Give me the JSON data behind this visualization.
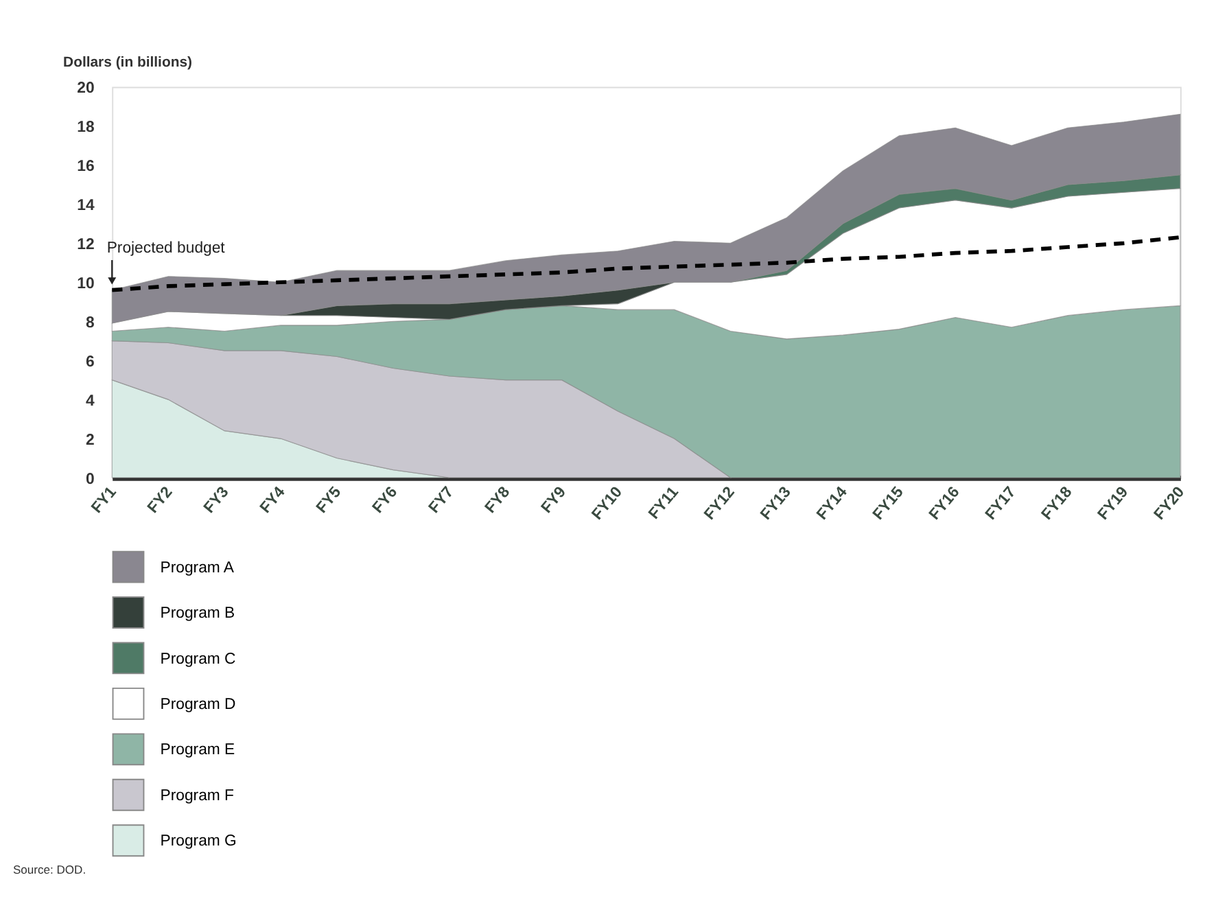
{
  "chart_data": {
    "type": "area",
    "stacked": true,
    "ylabel": "Dollars (in billions)",
    "categories": [
      "FY1",
      "FY2",
      "FY3",
      "FY4",
      "FY5",
      "FY6",
      "FY7",
      "FY8",
      "FY9",
      "FY10",
      "FY11",
      "FY12",
      "FY13",
      "FY14",
      "FY15",
      "FY16",
      "FY17",
      "FY18",
      "FY19",
      "FY20"
    ],
    "series": [
      {
        "name": "Program G",
        "color": "#d9ece6",
        "values": [
          5,
          4,
          2.4,
          2,
          1,
          0.4,
          0,
          null,
          null,
          null,
          null,
          null,
          null,
          null,
          null,
          null,
          null,
          null,
          null,
          null
        ]
      },
      {
        "name": "Program F",
        "color": "#c9c7cf",
        "values": [
          2,
          2.9,
          4.1,
          4.5,
          5.2,
          5.2,
          5.2,
          5,
          5,
          3.4,
          2,
          0,
          null,
          null,
          null,
          null,
          null,
          null,
          null,
          null
        ]
      },
      {
        "name": "Program E",
        "color": "#8fb5a6",
        "values": [
          0.5,
          0.8,
          1,
          1.3,
          1.6,
          2.4,
          2.9,
          3.6,
          3.8,
          5.2,
          6.6,
          7.5,
          7.1,
          7.3,
          7.6,
          8.2,
          7.7,
          8.3,
          8.6,
          8.8
        ]
      },
      {
        "name": "Program D",
        "color": "#ffffff",
        "values": [
          0.4,
          0.8,
          0.9,
          0.5,
          0.5,
          0.2,
          0,
          0,
          0,
          0.3,
          1.4,
          2.5,
          3.3,
          5.2,
          6.2,
          6,
          6.1,
          6.1,
          6,
          6
        ]
      },
      {
        "name": "Program C",
        "color": "#4f7a66",
        "values": [
          null,
          null,
          null,
          null,
          null,
          null,
          null,
          null,
          null,
          null,
          null,
          0,
          0.2,
          0.5,
          0.7,
          0.6,
          0.4,
          0.6,
          0.6,
          0.7
        ]
      },
      {
        "name": "Program B",
        "color": "#34403a",
        "values": [
          null,
          null,
          null,
          0,
          0.5,
          0.7,
          0.8,
          0.5,
          0.5,
          0.7,
          0,
          null,
          null,
          null,
          null,
          null,
          null,
          null,
          null,
          null
        ]
      },
      {
        "name": "Program A",
        "color": "#8a8790",
        "values": [
          1.7,
          1.8,
          1.8,
          1.7,
          1.8,
          1.7,
          1.7,
          2,
          2.1,
          2,
          2.1,
          2,
          2.7,
          2.7,
          3,
          3.1,
          2.8,
          2.9,
          3,
          3.1
        ]
      },
      {
        "type": "line",
        "color": "#000000",
        "line_style": "dashed",
        "values": [
          9.6,
          9.8,
          9.9,
          10,
          10.1,
          10.2,
          10.3,
          10.4,
          10.5,
          10.7,
          10.8,
          10.9,
          11,
          11.2,
          11.3,
          11.5,
          11.6,
          11.8,
          12,
          12.3
        ]
      }
    ],
    "ylim": [
      0,
      20
    ],
    "yticks": [
      0,
      2,
      4,
      6,
      8,
      10,
      12,
      14,
      16,
      18,
      20
    ],
    "grid": false,
    "legend": "bottom left",
    "annotations": [
      {
        "text": "Projected budget",
        "x": "FY1",
        "y": 9.6
      },
      "Source: DOD."
    ]
  }
}
